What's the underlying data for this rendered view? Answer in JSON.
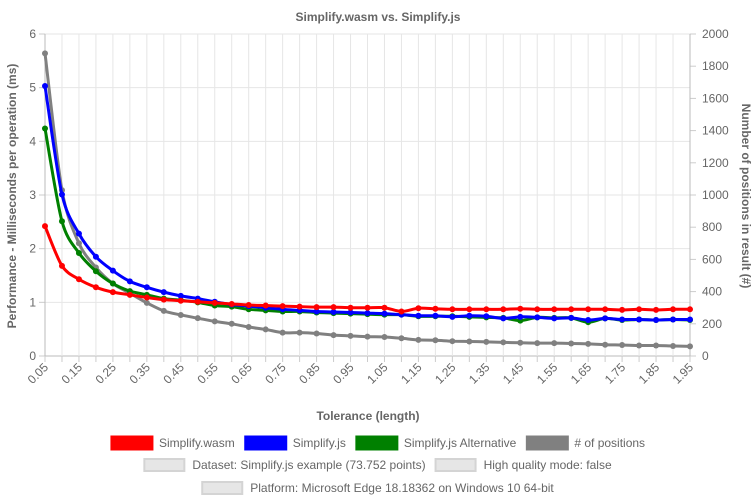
{
  "chart_data": {
    "type": "line",
    "title": "Simplify.wasm vs. Simplify.js",
    "xlabel": "Tolerance (length)",
    "ylabel_left": "Performance - Milliseconds per operation (ms)",
    "ylabel_right": "Number of positions in result (#)",
    "ylim_left": [
      0,
      6
    ],
    "ylim_right": [
      0,
      2000
    ],
    "y_ticks_left": [
      "0",
      "1",
      "2",
      "3",
      "4",
      "5",
      "6"
    ],
    "y_ticks_right": [
      "0",
      "200",
      "400",
      "600",
      "800",
      "1000",
      "1200",
      "1400",
      "1600",
      "1800",
      "2000"
    ],
    "x": [
      0.05,
      0.1,
      0.15,
      0.2,
      0.25,
      0.3,
      0.35,
      0.4,
      0.45,
      0.5,
      0.55,
      0.6,
      0.65,
      0.7,
      0.75,
      0.8,
      0.85,
      0.9,
      0.95,
      1.0,
      1.05,
      1.1,
      1.15,
      1.2,
      1.25,
      1.3,
      1.35,
      1.4,
      1.45,
      1.5,
      1.55,
      1.6,
      1.65,
      1.7,
      1.75,
      1.8,
      1.85,
      1.9,
      1.95
    ],
    "x_tick_labels": [
      "0.05",
      "0.15",
      "0.25",
      "0.35",
      "0.45",
      "0.55",
      "0.65",
      "0.75",
      "0.85",
      "0.95",
      "1.05",
      "1.15",
      "1.25",
      "1.35",
      "1.45",
      "1.55",
      "1.65",
      "1.75",
      "1.85",
      "1.95"
    ],
    "grid": true,
    "legend_position": "bottom",
    "series": [
      {
        "name": "Simplify.wasm",
        "axis": "left",
        "color": "#ff0000",
        "values": [
          2.42,
          1.68,
          1.43,
          1.28,
          1.19,
          1.14,
          1.09,
          1.05,
          1.03,
          1.01,
          0.99,
          0.97,
          0.95,
          0.94,
          0.93,
          0.92,
          0.91,
          0.91,
          0.9,
          0.9,
          0.9,
          0.83,
          0.89,
          0.88,
          0.87,
          0.87,
          0.87,
          0.87,
          0.88,
          0.87,
          0.87,
          0.87,
          0.87,
          0.87,
          0.86,
          0.87,
          0.86,
          0.87,
          0.87
        ]
      },
      {
        "name": "Simplify.js",
        "axis": "left",
        "color": "#0000ff",
        "values": [
          5.03,
          3.01,
          2.28,
          1.85,
          1.59,
          1.39,
          1.28,
          1.19,
          1.12,
          1.07,
          1.01,
          0.96,
          0.93,
          0.9,
          0.87,
          0.85,
          0.83,
          0.82,
          0.81,
          0.8,
          0.79,
          0.77,
          0.75,
          0.75,
          0.73,
          0.75,
          0.74,
          0.7,
          0.73,
          0.72,
          0.7,
          0.71,
          0.67,
          0.7,
          0.68,
          0.68,
          0.67,
          0.68,
          0.68
        ]
      },
      {
        "name": "Simplify.js Alternative",
        "axis": "left",
        "color": "#008000",
        "values": [
          4.24,
          2.51,
          1.92,
          1.58,
          1.35,
          1.21,
          1.14,
          1.07,
          1.04,
          1.0,
          0.94,
          0.92,
          0.87,
          0.85,
          0.83,
          0.83,
          0.81,
          0.8,
          0.79,
          0.78,
          0.77,
          0.77,
          0.74,
          0.74,
          0.74,
          0.73,
          0.72,
          0.71,
          0.66,
          0.72,
          0.71,
          0.71,
          0.63,
          0.7,
          0.67,
          0.68,
          0.67,
          0.68,
          0.67
        ]
      },
      {
        "name": "# of positions",
        "axis": "right",
        "color": "#808080",
        "values": [
          1880,
          1030,
          700,
          550,
          450,
          390,
          330,
          280,
          255,
          235,
          215,
          200,
          180,
          165,
          145,
          145,
          140,
          130,
          125,
          120,
          118,
          110,
          100,
          98,
          92,
          90,
          88,
          85,
          82,
          80,
          80,
          78,
          75,
          70,
          68,
          65,
          65,
          62,
          60
        ]
      }
    ],
    "notes": [
      "Dataset: Simplify.js example (73.752 points)",
      "High quality mode: false",
      "Platform: Microsoft Edge 18.18362 on Windows 10 64-bit"
    ]
  }
}
